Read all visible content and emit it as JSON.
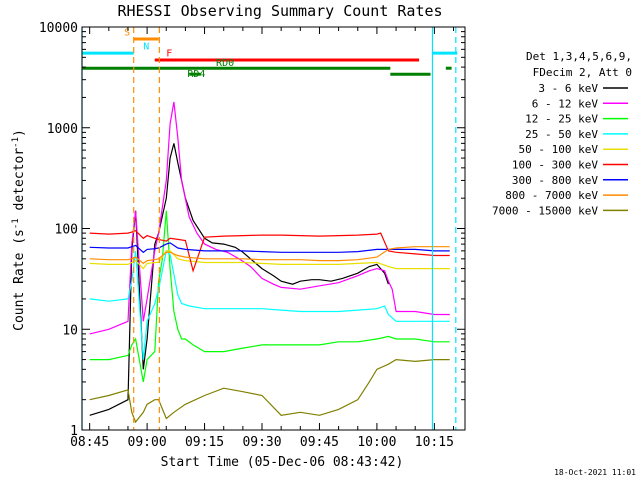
{
  "chart_data": {
    "type": "line",
    "title": "RHESSI Observing Summary Count Rates",
    "xlabel": "Start Time (05-Dec-06 08:43:42)",
    "ylabel_main": "Count Rate (s",
    "ylabel_sup1": "-1",
    "ylabel_mid": " detector",
    "ylabel_sup2": "-1",
    "ylabel_end": ")",
    "timestamp": "18-Oct-2021 11:01",
    "xlim_minutes": [
      -2,
      98
    ],
    "ylim": [
      1,
      10000
    ],
    "yscale": "log",
    "xticks": [
      {
        "m": 0,
        "label": "08:45"
      },
      {
        "m": 15,
        "label": "09:00"
      },
      {
        "m": 30,
        "label": "09:15"
      },
      {
        "m": 45,
        "label": "09:30"
      },
      {
        "m": 60,
        "label": "09:45"
      },
      {
        "m": 75,
        "label": "10:00"
      },
      {
        "m": 90,
        "label": "10:15"
      }
    ],
    "yticks": [
      {
        "v": 1,
        "label": "1"
      },
      {
        "v": 10,
        "label": "10"
      },
      {
        "v": 100,
        "label": "100"
      },
      {
        "v": 1000,
        "label": "1000"
      },
      {
        "v": 10000,
        "label": "10000"
      }
    ],
    "legend": {
      "header1": "Det 1,3,4,5,6,9,",
      "header2": "FDecim 2, Att 0",
      "placement": "right"
    },
    "series": [
      {
        "name": "3 - 6 keV",
        "color": "#000000",
        "points": [
          [
            0,
            1.4
          ],
          [
            5,
            1.6
          ],
          [
            10,
            2
          ],
          [
            11,
            60
          ],
          [
            12,
            150
          ],
          [
            14,
            4
          ],
          [
            15,
            8
          ],
          [
            17,
            70
          ],
          [
            18,
            90
          ],
          [
            20,
            200
          ],
          [
            21,
            500
          ],
          [
            22,
            700
          ],
          [
            23,
            450
          ],
          [
            25,
            200
          ],
          [
            27,
            120
          ],
          [
            30,
            80
          ],
          [
            32,
            72
          ],
          [
            35,
            70
          ],
          [
            38,
            65
          ],
          [
            40,
            58
          ],
          [
            42,
            50
          ],
          [
            45,
            40
          ],
          [
            48,
            34
          ],
          [
            50,
            30
          ],
          [
            53,
            28
          ],
          [
            55,
            30
          ],
          [
            58,
            31
          ],
          [
            60,
            31
          ],
          [
            63,
            30
          ],
          [
            66,
            32
          ],
          [
            70,
            36
          ],
          [
            73,
            42
          ],
          [
            75,
            44
          ],
          [
            77,
            36
          ],
          [
            78,
            28
          ]
        ]
      },
      {
        "name": "6 - 12 keV",
        "color": "#ff00ff",
        "points": [
          [
            0,
            9
          ],
          [
            5,
            10
          ],
          [
            10,
            12
          ],
          [
            11,
            70
          ],
          [
            12,
            150
          ],
          [
            14,
            12
          ],
          [
            15,
            20
          ],
          [
            17,
            60
          ],
          [
            18,
            90
          ],
          [
            20,
            300
          ],
          [
            21,
            1100
          ],
          [
            22,
            1800
          ],
          [
            23,
            800
          ],
          [
            24,
            300
          ],
          [
            26,
            130
          ],
          [
            28,
            90
          ],
          [
            30,
            70
          ],
          [
            33,
            62
          ],
          [
            36,
            58
          ],
          [
            39,
            50
          ],
          [
            42,
            42
          ],
          [
            45,
            32
          ],
          [
            48,
            28
          ],
          [
            50,
            26
          ],
          [
            55,
            25
          ],
          [
            60,
            27
          ],
          [
            65,
            29
          ],
          [
            70,
            34
          ],
          [
            73,
            38
          ],
          [
            75,
            40
          ],
          [
            77,
            38
          ],
          [
            78,
            30
          ],
          [
            79,
            25
          ],
          [
            80,
            15
          ],
          [
            85,
            15
          ],
          [
            90,
            14
          ],
          [
            94,
            14
          ]
        ]
      },
      {
        "name": "12 - 25 keV",
        "color": "#00ff00",
        "points": [
          [
            0,
            5
          ],
          [
            5,
            5
          ],
          [
            10,
            5.5
          ],
          [
            11,
            7
          ],
          [
            12,
            8
          ],
          [
            14,
            3
          ],
          [
            15,
            5
          ],
          [
            17,
            6
          ],
          [
            18,
            30
          ],
          [
            19,
            50
          ],
          [
            20,
            150
          ],
          [
            21,
            40
          ],
          [
            22,
            15
          ],
          [
            23,
            10
          ],
          [
            24,
            8
          ],
          [
            25,
            8
          ],
          [
            27,
            7
          ],
          [
            30,
            6
          ],
          [
            35,
            6
          ],
          [
            40,
            6.5
          ],
          [
            45,
            7
          ],
          [
            50,
            7
          ],
          [
            55,
            7
          ],
          [
            60,
            7
          ],
          [
            65,
            7.5
          ],
          [
            70,
            7.5
          ],
          [
            75,
            8
          ],
          [
            78,
            8.5
          ],
          [
            80,
            8
          ],
          [
            85,
            8
          ],
          [
            90,
            7.5
          ],
          [
            94,
            7.5
          ]
        ]
      },
      {
        "name": "25 - 50 keV",
        "color": "#00ffff",
        "points": [
          [
            0,
            20
          ],
          [
            5,
            19
          ],
          [
            10,
            20
          ],
          [
            11,
            30
          ],
          [
            12,
            60
          ],
          [
            14,
            5
          ],
          [
            15,
            12
          ],
          [
            17,
            18
          ],
          [
            18,
            25
          ],
          [
            20,
            60
          ],
          [
            21,
            55
          ],
          [
            22,
            35
          ],
          [
            23,
            22
          ],
          [
            24,
            18
          ],
          [
            26,
            17
          ],
          [
            30,
            16
          ],
          [
            35,
            16
          ],
          [
            40,
            16
          ],
          [
            45,
            16
          ],
          [
            50,
            15.5
          ],
          [
            55,
            15
          ],
          [
            60,
            15
          ],
          [
            65,
            15
          ],
          [
            70,
            15.5
          ],
          [
            75,
            16
          ],
          [
            77,
            17
          ],
          [
            78,
            14
          ],
          [
            80,
            12
          ],
          [
            85,
            12
          ],
          [
            90,
            12
          ],
          [
            94,
            12
          ]
        ]
      },
      {
        "name": "50 - 100 keV",
        "color": "#e8e000",
        "points": [
          [
            0,
            45
          ],
          [
            5,
            44
          ],
          [
            10,
            44
          ],
          [
            11,
            46
          ],
          [
            12,
            48
          ],
          [
            14,
            40
          ],
          [
            15,
            45
          ],
          [
            17,
            46
          ],
          [
            18,
            46
          ],
          [
            20,
            60
          ],
          [
            21,
            60
          ],
          [
            22,
            55
          ],
          [
            23,
            50
          ],
          [
            25,
            48
          ],
          [
            30,
            46
          ],
          [
            35,
            46
          ],
          [
            40,
            46
          ],
          [
            45,
            45
          ],
          [
            50,
            44
          ],
          [
            55,
            44
          ],
          [
            60,
            44
          ],
          [
            65,
            44
          ],
          [
            70,
            45
          ],
          [
            75,
            46
          ],
          [
            78,
            42
          ],
          [
            80,
            40
          ],
          [
            85,
            40
          ],
          [
            90,
            40
          ],
          [
            94,
            40
          ]
        ]
      },
      {
        "name": "100 - 300 keV",
        "color": "#ff0000",
        "points": [
          [
            0,
            90
          ],
          [
            5,
            88
          ],
          [
            10,
            90
          ],
          [
            11,
            92
          ],
          [
            12,
            95
          ],
          [
            14,
            80
          ],
          [
            15,
            85
          ],
          [
            17,
            80
          ],
          [
            18,
            78
          ],
          [
            20,
            75
          ],
          [
            21,
            80
          ],
          [
            23,
            78
          ],
          [
            25,
            76
          ],
          [
            27,
            38
          ],
          [
            30,
            82
          ],
          [
            35,
            84
          ],
          [
            40,
            85
          ],
          [
            45,
            86
          ],
          [
            50,
            86
          ],
          [
            55,
            85
          ],
          [
            60,
            84
          ],
          [
            65,
            85
          ],
          [
            70,
            86
          ],
          [
            75,
            88
          ],
          [
            76,
            90
          ],
          [
            78,
            60
          ],
          [
            80,
            58
          ],
          [
            85,
            56
          ],
          [
            90,
            54
          ],
          [
            94,
            54
          ]
        ]
      },
      {
        "name": "300 - 800 keV",
        "color": "#0000ff",
        "points": [
          [
            0,
            65
          ],
          [
            5,
            64
          ],
          [
            10,
            64
          ],
          [
            11,
            66
          ],
          [
            12,
            68
          ],
          [
            14,
            58
          ],
          [
            15,
            62
          ],
          [
            17,
            63
          ],
          [
            18,
            64
          ],
          [
            20,
            70
          ],
          [
            21,
            72
          ],
          [
            22,
            68
          ],
          [
            23,
            64
          ],
          [
            25,
            62
          ],
          [
            30,
            60
          ],
          [
            35,
            60
          ],
          [
            40,
            60
          ],
          [
            45,
            59
          ],
          [
            50,
            58
          ],
          [
            55,
            58
          ],
          [
            60,
            58
          ],
          [
            65,
            58
          ],
          [
            70,
            59
          ],
          [
            75,
            62
          ],
          [
            78,
            62
          ],
          [
            80,
            62
          ],
          [
            85,
            62
          ],
          [
            90,
            60
          ],
          [
            94,
            60
          ]
        ]
      },
      {
        "name": "800 - 7000 keV",
        "color": "#ff8c00",
        "points": [
          [
            0,
            50
          ],
          [
            5,
            49
          ],
          [
            10,
            49
          ],
          [
            11,
            50
          ],
          [
            12,
            52
          ],
          [
            14,
            45
          ],
          [
            15,
            48
          ],
          [
            17,
            49
          ],
          [
            18,
            50
          ],
          [
            20,
            58
          ],
          [
            21,
            58
          ],
          [
            22,
            56
          ],
          [
            23,
            54
          ],
          [
            25,
            52
          ],
          [
            30,
            50
          ],
          [
            35,
            50
          ],
          [
            40,
            50
          ],
          [
            45,
            49
          ],
          [
            50,
            49
          ],
          [
            55,
            49
          ],
          [
            60,
            48
          ],
          [
            65,
            48
          ],
          [
            70,
            49
          ],
          [
            75,
            52
          ],
          [
            78,
            62
          ],
          [
            80,
            64
          ],
          [
            85,
            66
          ],
          [
            90,
            66
          ],
          [
            94,
            66
          ]
        ]
      },
      {
        "name": "7000 - 15000 keV",
        "color": "#808000",
        "points": [
          [
            0,
            2
          ],
          [
            5,
            2.2
          ],
          [
            10,
            2.5
          ],
          [
            11,
            1.5
          ],
          [
            12,
            1.2
          ],
          [
            14,
            1.5
          ],
          [
            15,
            1.8
          ],
          [
            17,
            2
          ],
          [
            18,
            2
          ],
          [
            20,
            1.3
          ],
          [
            22,
            1.5
          ],
          [
            25,
            1.8
          ],
          [
            30,
            2.2
          ],
          [
            35,
            2.6
          ],
          [
            40,
            2.4
          ],
          [
            45,
            2.2
          ],
          [
            50,
            1.4
          ],
          [
            55,
            1.5
          ],
          [
            60,
            1.4
          ],
          [
            65,
            1.6
          ],
          [
            70,
            2
          ],
          [
            73,
            3
          ],
          [
            75,
            4
          ],
          [
            78,
            4.5
          ],
          [
            80,
            5
          ],
          [
            85,
            4.8
          ],
          [
            90,
            5
          ],
          [
            94,
            5
          ]
        ]
      }
    ],
    "bars": [
      {
        "color": "#00e5ff",
        "y": 5500,
        "x0": -2,
        "x1": 11.5
      },
      {
        "color": "#00e5ff",
        "y": 5500,
        "x0": 89.5,
        "x1": 96
      },
      {
        "color": "#ff0000",
        "y": 4700,
        "x0": 17,
        "x1": 86
      },
      {
        "color": "#ff8c00",
        "y": 7600,
        "x0": 11.5,
        "x1": 18
      },
      {
        "color": "#008000",
        "y": 3900,
        "x0": -2,
        "x1": 78.5
      },
      {
        "color": "#008000",
        "y": 3400,
        "x0": 78.5,
        "x1": 89
      },
      {
        "color": "#008000",
        "y": 3900,
        "x0": 93,
        "x1": 94.5
      },
      {
        "color": "#008000",
        "y": 3400,
        "x0": 26,
        "x1": 29
      }
    ],
    "vlines": [
      {
        "m": -2,
        "color": "#00e5ff",
        "dash": false
      },
      {
        "m": 11.5,
        "color": "#ff8c00",
        "dash": true
      },
      {
        "m": 18.2,
        "color": "#ff8c00",
        "dash": true
      },
      {
        "m": 89.5,
        "color": "#00e5ff",
        "dash": false
      },
      {
        "m": 95.6,
        "color": "#00e5ff",
        "dash": true
      }
    ],
    "annotations": [
      {
        "text": "S",
        "m": 9,
        "v": 8200,
        "color": "#ff8c00"
      },
      {
        "text": "N",
        "m": 14,
        "v": 6000,
        "color": "#00e5ff"
      },
      {
        "text": "F",
        "m": 20,
        "v": 5100,
        "color": "#ff0000"
      },
      {
        "text": "RD0",
        "m": 33,
        "v": 4100,
        "color": "#008000"
      },
      {
        "text": "RD4",
        "m": 25.5,
        "v": 3200,
        "color": "#008000"
      }
    ]
  }
}
